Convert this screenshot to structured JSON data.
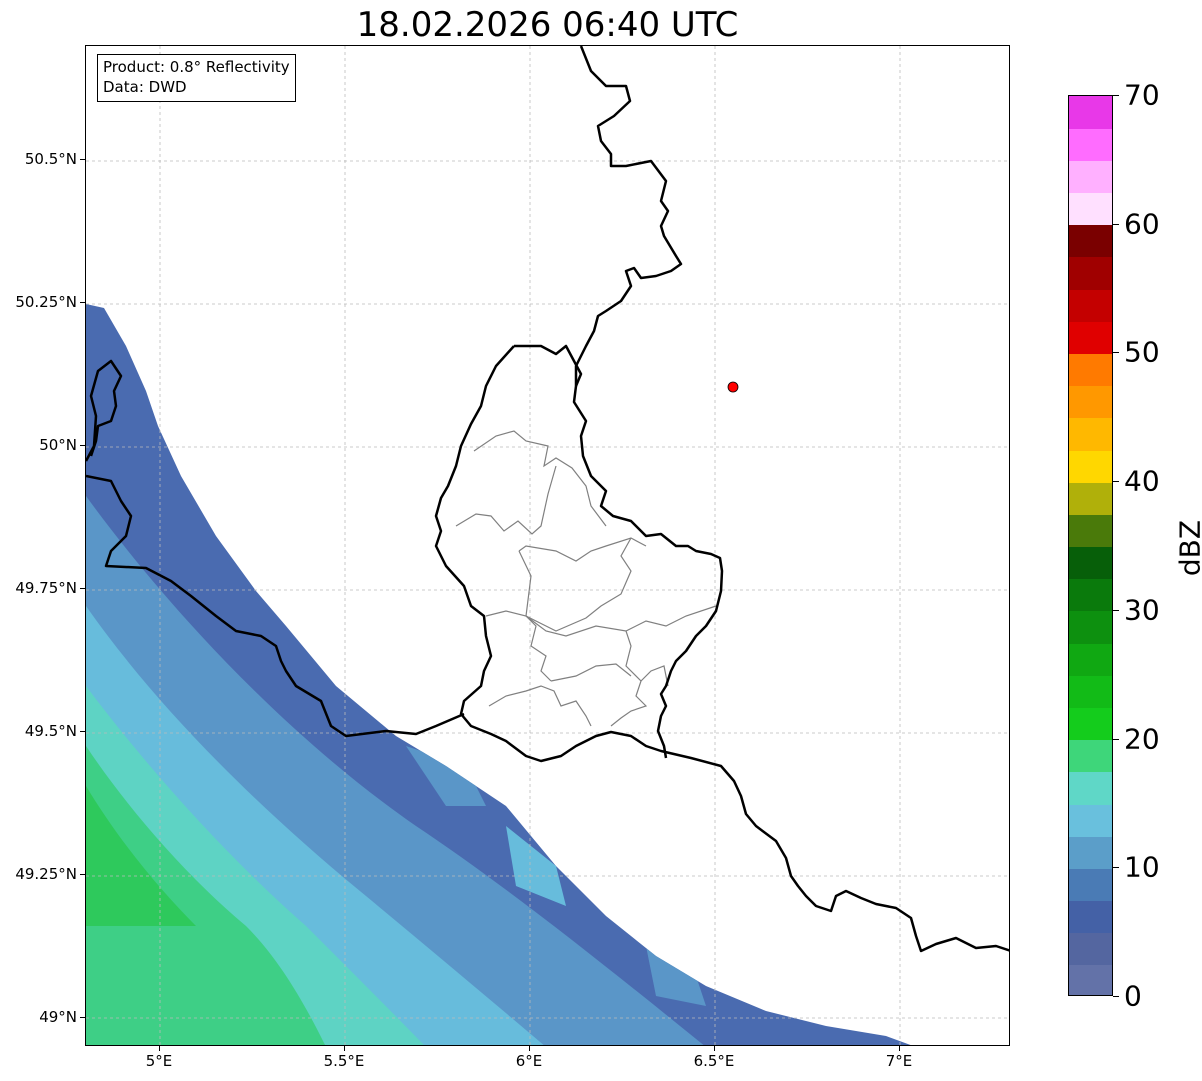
{
  "title": "18.02.2026 06:40 UTC",
  "info": {
    "product": "Product: 0.8° Reflectivity",
    "data": "Data: DWD"
  },
  "map": {
    "lon_range": [
      4.8,
      7.3
    ],
    "lat_range": [
      48.95,
      50.7
    ],
    "lat_ticks": [
      {
        "value": 50.5,
        "label": "50.5°N"
      },
      {
        "value": 50.25,
        "label": "50.25°N"
      },
      {
        "value": 50.0,
        "label": "50°N"
      },
      {
        "value": 49.75,
        "label": "49.75°N"
      },
      {
        "value": 49.5,
        "label": "49.5°N"
      },
      {
        "value": 49.25,
        "label": "49.25°N"
      },
      {
        "value": 49.0,
        "label": "49°N"
      }
    ],
    "lon_ticks": [
      {
        "value": 5.0,
        "label": "5°E"
      },
      {
        "value": 5.5,
        "label": "5.5°E"
      },
      {
        "value": 6.0,
        "label": "6°E"
      },
      {
        "value": 6.5,
        "label": "6.5°E"
      },
      {
        "value": 7.0,
        "label": "7°E"
      }
    ],
    "marker": {
      "lon": 6.55,
      "lat": 50.11,
      "color": "#ff0000"
    }
  },
  "colorbar": {
    "unit": "dBZ",
    "min": 0,
    "max": 70,
    "ticks": [
      {
        "value": 0,
        "label": "0"
      },
      {
        "value": 10,
        "label": "10"
      },
      {
        "value": 20,
        "label": "20"
      },
      {
        "value": 30,
        "label": "30"
      },
      {
        "value": 40,
        "label": "40"
      },
      {
        "value": 50,
        "label": "50"
      },
      {
        "value": 60,
        "label": "60"
      },
      {
        "value": 70,
        "label": "70"
      }
    ],
    "colors": [
      "#6372a8",
      "#5466a0",
      "#4461a6",
      "#4a7bb5",
      "#5b9ec9",
      "#69c0dd",
      "#5fd7c7",
      "#3ed67a",
      "#14cc1c",
      "#12bb17",
      "#10a812",
      "#0d900f",
      "#0a7a0c",
      "#075f09",
      "#4a7a0a",
      "#b0b00a",
      "#ffd700",
      "#ffb800",
      "#ff9800",
      "#ff7a00",
      "#e00000",
      "#c40000",
      "#a00000",
      "#7a0000",
      "#ffe0ff",
      "#ffb0ff",
      "#ff6cff",
      "#e838e8"
    ]
  }
}
